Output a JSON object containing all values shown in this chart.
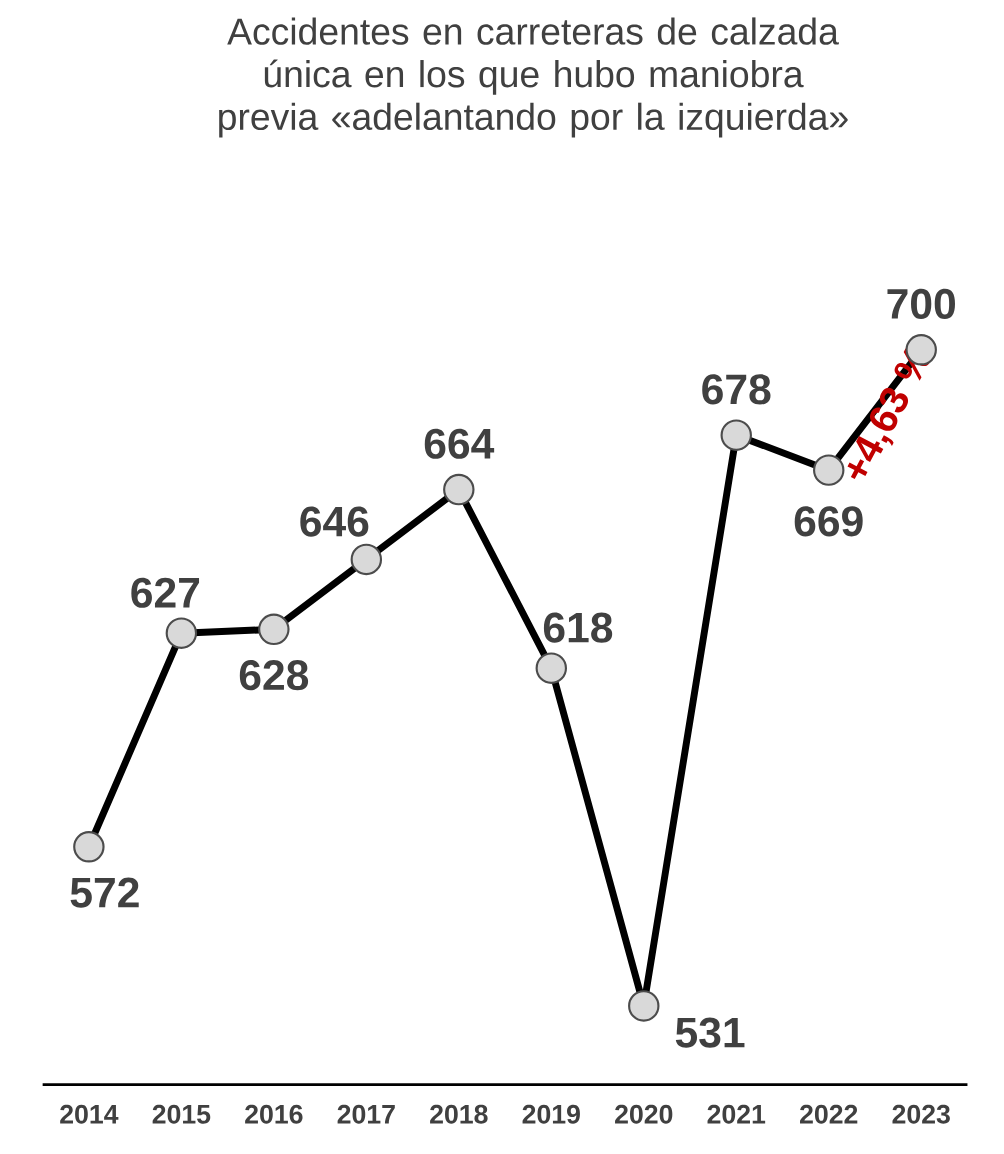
{
  "chart_data": {
    "type": "line",
    "title": "Accidentes en carreteras de calzada única en los que hubo maniobra previa «adelantando por la izquierda»",
    "categories": [
      "2014",
      "2015",
      "2016",
      "2017",
      "2018",
      "2019",
      "2020",
      "2021",
      "2022",
      "2023"
    ],
    "values": [
      572,
      627,
      628,
      646,
      664,
      618,
      531,
      678,
      669,
      700
    ],
    "color": "#000000",
    "marker": "circle",
    "line_style": "solid",
    "data_labels": true,
    "grid": false,
    "annotations": [
      "+4,63 %"
    ]
  }
}
